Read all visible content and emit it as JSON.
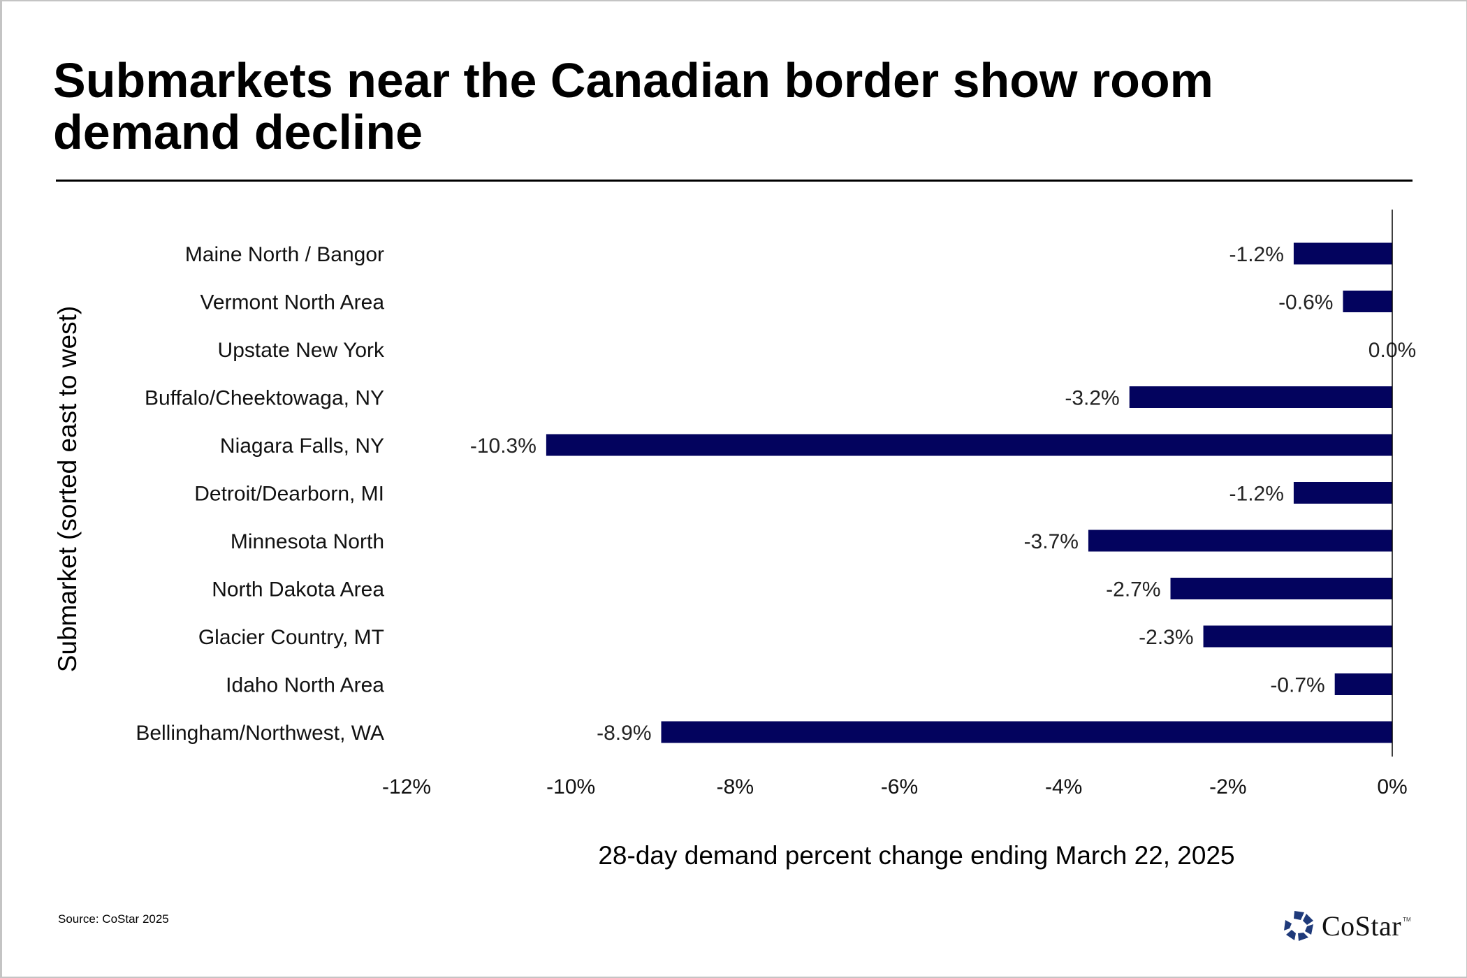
{
  "title": "Submarkets near the Canadian border show room demand decline",
  "source": "Source: CoStar 2025",
  "logo": {
    "text": "CoStar",
    "tm": "TM",
    "icon": "costar-star-icon",
    "color": "#1f3a7a"
  },
  "colors": {
    "bar": "#03035e",
    "axis": "#000000"
  },
  "chart_data": {
    "type": "bar",
    "orientation": "horizontal",
    "title": "Submarkets near the Canadian border show room demand decline",
    "xlabel": "28-day demand percent change ending March 22, 2025",
    "ylabel": "Submarket (sorted east to west)",
    "xlim": [
      -12,
      0
    ],
    "x_ticks": [
      -12,
      -10,
      -8,
      -6,
      -4,
      -2,
      0
    ],
    "x_tick_labels": [
      "-12%",
      "-10%",
      "-8%",
      "-6%",
      "-4%",
      "-2%",
      "0%"
    ],
    "grid": false,
    "legend": "none",
    "categories": [
      "Maine North / Bangor",
      "Vermont North Area",
      "Upstate New York",
      "Buffalo/Cheektowaga, NY",
      "Niagara Falls, NY",
      "Detroit/Dearborn, MI",
      "Minnesota North",
      "North Dakota Area",
      "Glacier Country, MT",
      "Idaho North Area",
      "Bellingham/Northwest, WA"
    ],
    "values": [
      -1.2,
      -0.6,
      0.0,
      -3.2,
      -10.3,
      -1.2,
      -3.7,
      -2.7,
      -2.3,
      -0.7,
      -8.9
    ],
    "data_labels": [
      "-1.2%",
      "-0.6%",
      "0.0%",
      "-3.2%",
      "-10.3%",
      "-1.2%",
      "-3.7%",
      "-2.7%",
      "-2.3%",
      "-0.7%",
      "-8.9%"
    ]
  }
}
